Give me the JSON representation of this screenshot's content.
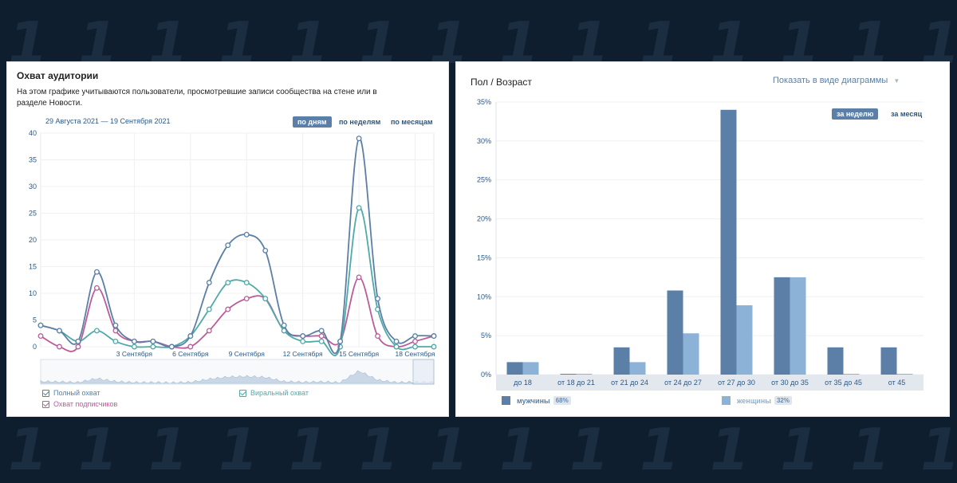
{
  "reach_panel": {
    "title": "Охват аудитории",
    "description": "На этом графике учитываются пользователи, просмотревшие записи сообщества на стене или в разделе Новости.",
    "date_range": "29 Августа 2021 — 19 Сентября 2021",
    "tabs": [
      {
        "label": "по дням",
        "active": true
      },
      {
        "label": "по неделям",
        "active": false
      },
      {
        "label": "по месяцам",
        "active": false
      }
    ],
    "legend": [
      {
        "label": "Полный охват",
        "color": "#5b7fa6"
      },
      {
        "label": "Виральный охват",
        "color": "#4faaa8"
      },
      {
        "label": "Охват подписчиков",
        "color": "#bb5c98"
      }
    ]
  },
  "demo_panel": {
    "title": "Пол / Возраст",
    "view_toggle": "Показать в виде диаграммы",
    "tabs": [
      {
        "label": "за неделю",
        "active": true
      },
      {
        "label": "за месяц",
        "active": false
      }
    ],
    "legend": [
      {
        "label": "мужчины",
        "pct": "68%",
        "color": "#5b7fa6"
      },
      {
        "label": "женщины",
        "pct": "32%",
        "color": "#8db2d8"
      }
    ]
  },
  "chart_data": [
    {
      "type": "line",
      "title": "Охват аудитории",
      "x": [
        "29.08",
        "30.08",
        "31.08",
        "1.09",
        "2.09",
        "3.09",
        "4.09",
        "5.09",
        "6.09",
        "7.09",
        "8.09",
        "9.09",
        "10.09",
        "11.09",
        "12.09",
        "13.09",
        "14.09",
        "15.09",
        "16.09",
        "17.09",
        "18.09",
        "19.09"
      ],
      "x_tick_labels": [
        {
          "index": 5,
          "label": "3 Сентября"
        },
        {
          "index": 8,
          "label": "6 Сентября"
        },
        {
          "index": 11,
          "label": "9 Сентября"
        },
        {
          "index": 14,
          "label": "12 Сентября"
        },
        {
          "index": 17,
          "label": "15 Сентября"
        },
        {
          "index": 20,
          "label": "18 Сентября"
        }
      ],
      "y_ticks": [
        "0",
        "5",
        "10",
        "15",
        "20",
        "25",
        "30",
        "35",
        "40"
      ],
      "ylim": [
        0,
        40
      ],
      "grid": true,
      "series": [
        {
          "name": "Полный охват",
          "color": "#5b7fa6",
          "values": [
            4,
            3,
            1,
            14,
            4,
            1,
            1,
            0,
            2,
            12,
            19,
            21,
            18,
            4,
            2,
            3,
            1,
            39,
            9,
            1,
            2,
            2
          ]
        },
        {
          "name": "Виральный охват",
          "color": "#4faaa8",
          "values": [
            4,
            3,
            1,
            3,
            1,
            0,
            0,
            0,
            2,
            7,
            12,
            12,
            9,
            3,
            1,
            1,
            0,
            26,
            7,
            0,
            0,
            0
          ]
        },
        {
          "name": "Охват подписчиков",
          "color": "#bb5c98",
          "values": [
            2,
            0,
            0,
            11,
            3,
            1,
            1,
            0,
            0,
            3,
            7,
            9,
            9,
            3,
            2,
            2,
            1,
            13,
            2,
            0,
            1,
            2
          ]
        }
      ]
    },
    {
      "type": "bar",
      "title": "Пол / Возраст",
      "categories": [
        "до 18",
        "от 18 до 21",
        "от 21 до 24",
        "от 24 до 27",
        "от 27 до 30",
        "от 30 до 35",
        "от 35 до 45",
        "от 45"
      ],
      "y_ticks": [
        "0%",
        "5%",
        "10%",
        "15%",
        "20%",
        "25%",
        "30%",
        "35%"
      ],
      "ylim": [
        0,
        35
      ],
      "grid": true,
      "series": [
        {
          "name": "мужчины",
          "color": "#5b7fa6",
          "values": [
            1.6,
            0.1,
            3.5,
            10.8,
            34,
            12.5,
            3.5,
            3.5
          ]
        },
        {
          "name": "женщины",
          "color": "#8db2d8",
          "values": [
            1.6,
            0.1,
            1.6,
            5.3,
            8.9,
            12.5,
            0.1,
            0.1
          ]
        }
      ]
    }
  ]
}
